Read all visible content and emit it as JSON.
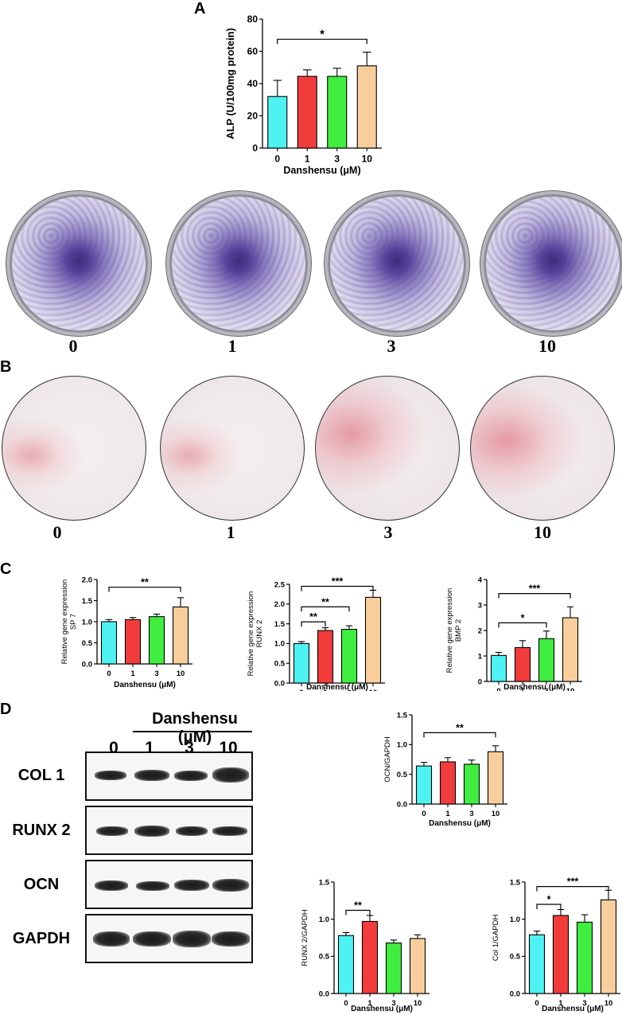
{
  "panels": {
    "a": "A",
    "b": "B",
    "c": "C",
    "d": "D"
  },
  "dish_labels": [
    "0",
    "1",
    "3",
    "10"
  ],
  "blot": {
    "header": "Danshensu (μM)",
    "lanes": [
      "0",
      "1",
      "3",
      "10"
    ],
    "rows": [
      "COL 1",
      "RUNX 2",
      "OCN",
      "GAPDH"
    ]
  },
  "charts": {
    "alp": {
      "ylabel": "ALP (U/100mg protein)",
      "xlabel": "Danshensu (μM)"
    },
    "sp7": {
      "ylabel_line1": "Relative gene expression",
      "ylabel_line2": "SP 7",
      "xlabel": "Danshensu (μM)"
    },
    "runx2_gene": {
      "ylabel_line1": "Relative gene expression",
      "ylabel_line2": "RUNX 2",
      "xlabel": "Danshensu (μM)"
    },
    "bmp2": {
      "ylabel_line1": "Relative gene expression",
      "ylabel_line2": "BMP 2",
      "xlabel": "Danshensu (μM)"
    },
    "ocn": {
      "ylabel": "OCN/GAPDH",
      "xlabel": "Danshensu (μM)"
    },
    "runx2_wb": {
      "ylabel": "RUNX 2/GAPDH",
      "xlabel": "Danshensu (μM)"
    },
    "col1_wb": {
      "ylabel": "Col 1/GAPDH",
      "xlabel": "Danshensu (μM)"
    }
  },
  "colors": {
    "c0": "#4ff2f2",
    "c1": "#f23c3c",
    "c3": "#40ee40",
    "c10": "#f8cf9c"
  },
  "chart_data": [
    {
      "id": "alp",
      "type": "bar",
      "categories": [
        "0",
        "1",
        "3",
        "10"
      ],
      "values": [
        32,
        44.5,
        44.5,
        51
      ],
      "errors": [
        10,
        4,
        5,
        8.5
      ],
      "ylim": [
        0,
        80
      ],
      "yticks": [
        0,
        20,
        40,
        60,
        80
      ],
      "significance": [
        {
          "from": 0,
          "to": 3,
          "label": "*",
          "y": 67.5
        }
      ]
    },
    {
      "id": "sp7",
      "type": "bar",
      "categories": [
        "0",
        "1",
        "3",
        "10"
      ],
      "values": [
        1.0,
        1.05,
        1.12,
        1.35
      ],
      "errors": [
        0.05,
        0.05,
        0.06,
        0.22
      ],
      "ylim": [
        0,
        2.0
      ],
      "yticks": [
        0,
        0.5,
        1.0,
        1.5,
        2.0
      ],
      "significance": [
        {
          "from": 0,
          "to": 3,
          "label": "**",
          "y": 1.82
        }
      ]
    },
    {
      "id": "runx2_gene",
      "type": "bar",
      "categories": [
        "0",
        "1",
        "3",
        "10"
      ],
      "values": [
        1.0,
        1.33,
        1.36,
        2.17
      ],
      "errors": [
        0.05,
        0.07,
        0.09,
        0.18
      ],
      "ylim": [
        0,
        2.5
      ],
      "yticks": [
        0,
        0.5,
        1.0,
        1.5,
        2.0,
        2.5
      ],
      "significance": [
        {
          "from": 0,
          "to": 1,
          "label": "**",
          "y": 1.55
        },
        {
          "from": 0,
          "to": 2,
          "label": "**",
          "y": 1.93
        },
        {
          "from": 0,
          "to": 3,
          "label": "***",
          "y": 2.45
        }
      ]
    },
    {
      "id": "bmp2",
      "type": "bar",
      "categories": [
        "0",
        "1",
        "3",
        "10"
      ],
      "values": [
        1.02,
        1.33,
        1.68,
        2.5
      ],
      "errors": [
        0.12,
        0.27,
        0.3,
        0.43
      ],
      "ylim": [
        0,
        4
      ],
      "yticks": [
        0,
        1,
        2,
        3,
        4
      ],
      "significance": [
        {
          "from": 0,
          "to": 2,
          "label": "*",
          "y": 2.3
        },
        {
          "from": 0,
          "to": 3,
          "label": "***",
          "y": 3.45
        }
      ]
    },
    {
      "id": "ocn",
      "type": "bar",
      "categories": [
        "0",
        "1",
        "3",
        "10"
      ],
      "values": [
        0.64,
        0.71,
        0.67,
        0.88
      ],
      "errors": [
        0.06,
        0.07,
        0.07,
        0.1
      ],
      "ylim": [
        0,
        1.5
      ],
      "yticks": [
        0,
        0.5,
        1.0,
        1.5
      ],
      "significance": [
        {
          "from": 0,
          "to": 3,
          "label": "**",
          "y": 1.2
        }
      ]
    },
    {
      "id": "runx2_wb",
      "type": "bar",
      "categories": [
        "0",
        "1",
        "3",
        "10"
      ],
      "values": [
        0.78,
        0.97,
        0.68,
        0.74
      ],
      "errors": [
        0.04,
        0.08,
        0.04,
        0.05
      ],
      "ylim": [
        0,
        1.5
      ],
      "yticks": [
        0,
        0.5,
        1.0,
        1.5
      ],
      "significance": [
        {
          "from": 0,
          "to": 1,
          "label": "**",
          "y": 1.12
        }
      ]
    },
    {
      "id": "col1_wb",
      "type": "bar",
      "categories": [
        "0",
        "1",
        "3",
        "10"
      ],
      "values": [
        0.79,
        1.05,
        0.96,
        1.26
      ],
      "errors": [
        0.05,
        0.08,
        0.1,
        0.13
      ],
      "ylim": [
        0,
        1.5
      ],
      "yticks": [
        0,
        0.5,
        1.0,
        1.5
      ],
      "significance": [
        {
          "from": 0,
          "to": 1,
          "label": "*",
          "y": 1.2
        },
        {
          "from": 0,
          "to": 3,
          "label": "***",
          "y": 1.44
        }
      ]
    }
  ]
}
